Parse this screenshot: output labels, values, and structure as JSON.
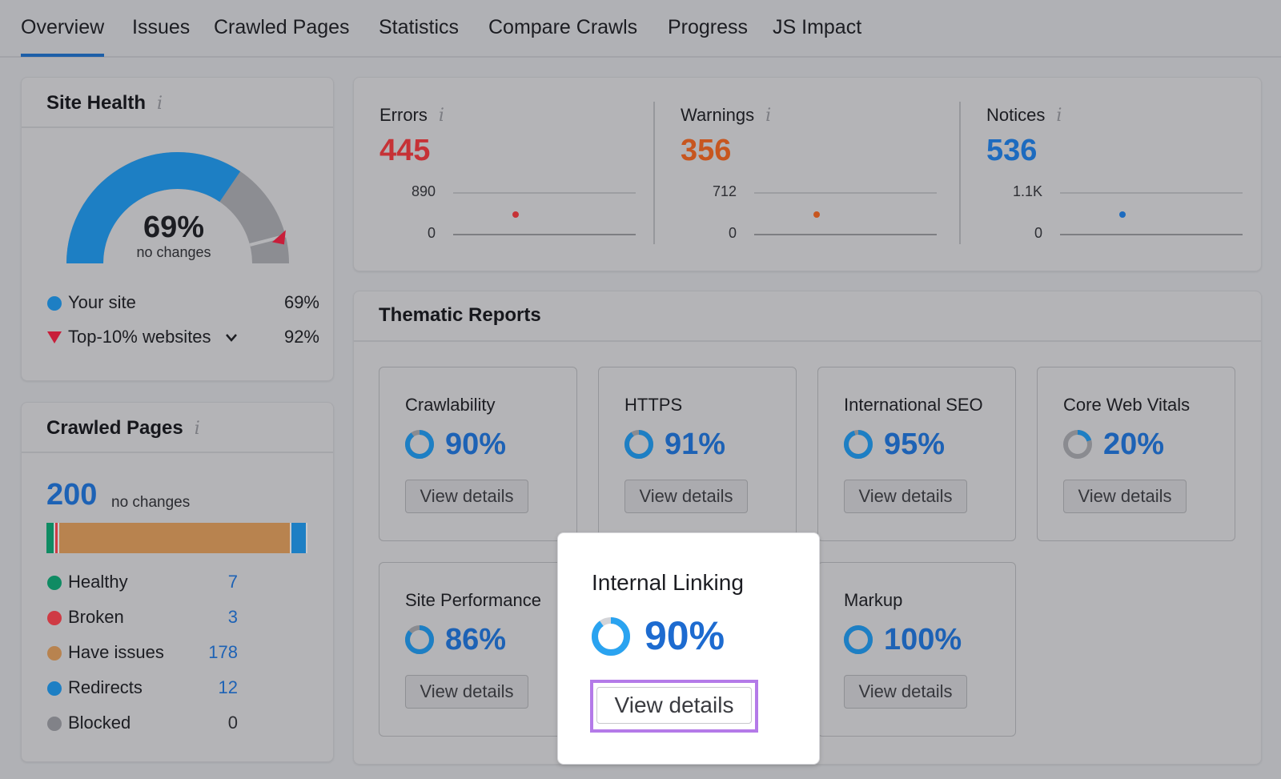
{
  "tabs": [
    {
      "label": "Overview",
      "active": true
    },
    {
      "label": "Issues"
    },
    {
      "label": "Crawled Pages"
    },
    {
      "label": "Statistics"
    },
    {
      "label": "Compare Crawls"
    },
    {
      "label": "Progress"
    },
    {
      "label": "JS Impact"
    }
  ],
  "site_health": {
    "title": "Site Health",
    "info_icon": "i",
    "percent_label": "69%",
    "subtext": "no changes",
    "score_fraction": 0.69,
    "top10_fraction": 0.92,
    "legend": [
      {
        "label": "Your site",
        "value": "69%",
        "color": "#1d7fc4",
        "marker": "dot"
      },
      {
        "label": "Top-10% websites",
        "value": "92%",
        "color": "#c81e3a",
        "marker": "triangle-down"
      }
    ]
  },
  "crawled_pages": {
    "title": "Crawled Pages",
    "info_icon": "i",
    "total": "200",
    "total_note": "no changes",
    "items": [
      {
        "label": "Healthy",
        "value": "7",
        "count": 7,
        "color": "#0f8b63"
      },
      {
        "label": "Broken",
        "value": "3",
        "count": 3,
        "color": "#cf3a44"
      },
      {
        "label": "Have issues",
        "value": "178",
        "count": 178,
        "color": "#b8834f"
      },
      {
        "label": "Redirects",
        "value": "12",
        "count": 12,
        "color": "#1d7fc4"
      },
      {
        "label": "Blocked",
        "value": "0",
        "count": 0,
        "color": "#818288"
      }
    ]
  },
  "metrics": [
    {
      "label": "Errors",
      "value": "445",
      "color": "#c63236",
      "y_max": "890",
      "y_min": "0"
    },
    {
      "label": "Warnings",
      "value": "356",
      "color": "#c7561f",
      "y_max": "712",
      "y_min": "0"
    },
    {
      "label": "Notices",
      "value": "536",
      "color": "#1d6bbf",
      "y_max": "1.1K",
      "y_min": "0"
    }
  ],
  "thematic": {
    "title": "Thematic Reports",
    "reports": [
      {
        "name": "Crawlability",
        "value": "90%",
        "fraction": 0.9,
        "button": "View details"
      },
      {
        "name": "HTTPS",
        "value": "91%",
        "fraction": 0.91,
        "button": "View details"
      },
      {
        "name": "International SEO",
        "value": "95%",
        "fraction": 0.95,
        "button": "View details"
      },
      {
        "name": "Core Web Vitals",
        "value": "20%",
        "fraction": 0.2,
        "button": "View details"
      },
      {
        "name": "Site Performance",
        "value": "86%",
        "fraction": 0.86,
        "button": "View details"
      },
      {
        "name": "Markup",
        "value": "100%",
        "fraction": 1.0,
        "button": "View details"
      }
    ],
    "popup": {
      "name": "Internal Linking",
      "value": "90%",
      "fraction": 0.9,
      "button": "View details",
      "highlight_color": "#b47ae8"
    }
  }
}
